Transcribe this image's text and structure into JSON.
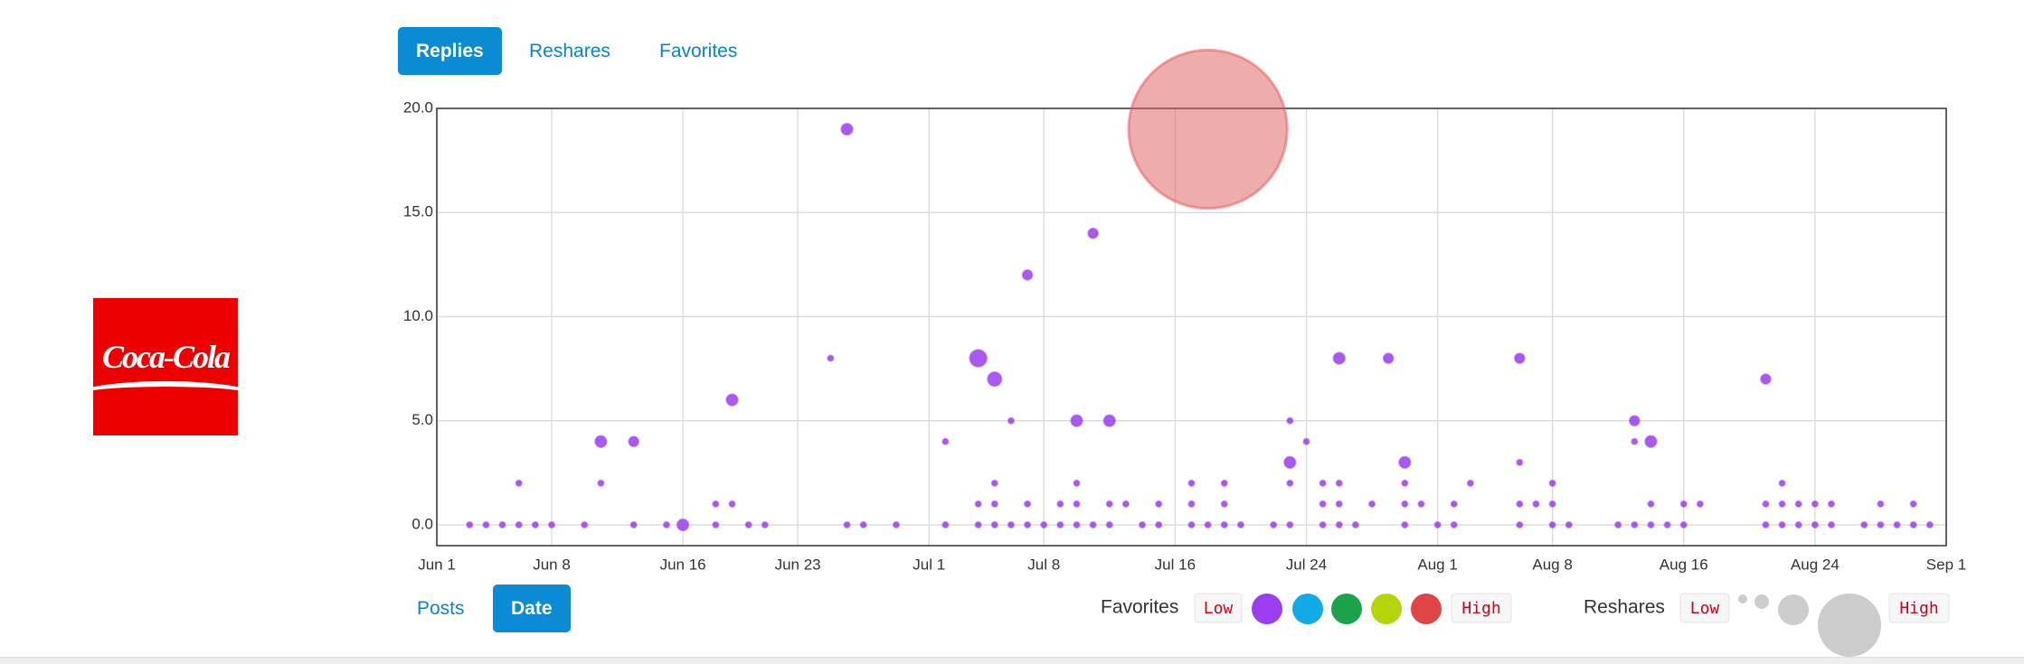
{
  "logo": {
    "text": "Coca-Cola"
  },
  "metric_tabs": [
    "Replies",
    "Reshares",
    "Favorites"
  ],
  "sort_tabs": [
    "Posts",
    "Date"
  ],
  "legend": {
    "favorites": {
      "title": "Favorites",
      "low": "Low",
      "high": "High"
    },
    "reshares": {
      "title": "Reshares",
      "low": "Low",
      "high": "High"
    }
  },
  "chart_data": {
    "type": "scatter",
    "xlim": [
      "Jun 1",
      "Sep 1"
    ],
    "xticks": [
      "Jun 1",
      "Jun 8",
      "Jun 16",
      "Jun 23",
      "Jul 1",
      "Jul 8",
      "Jul 16",
      "Jul 24",
      "Aug 1",
      "Aug 8",
      "Aug 16",
      "Aug 24",
      "Sep 1"
    ],
    "ylim": [
      -1,
      20
    ],
    "yticks": [
      {
        "value": 0,
        "label": "0.0"
      },
      {
        "value": 5,
        "label": "5.0"
      },
      {
        "value": 10,
        "label": "10.0"
      },
      {
        "value": 15,
        "label": "15.0"
      },
      {
        "value": 20,
        "label": "20.0"
      }
    ],
    "grid": true,
    "series": [
      {
        "color": "#9b3df0",
        "x": [
          "Jun 3",
          "Jun 4",
          "Jun 5",
          "Jun 6",
          "Jun 6",
          "Jun 7",
          "Jun 8",
          "Jun 10",
          "Jun 11",
          "Jun 11",
          "Jun 13",
          "Jun 13",
          "Jun 15",
          "Jun 16",
          "Jun 18",
          "Jun 18",
          "Jun 19",
          "Jun 19",
          "Jun 20",
          "Jun 21",
          "Jun 25",
          "Jun 26",
          "Jun 26",
          "Jun 27",
          "Jun 29",
          "Jul 2",
          "Jul 2",
          "Jul 4",
          "Jul 4",
          "Jul 4",
          "Jul 5",
          "Jul 5",
          "Jul 5",
          "Jul 5",
          "Jul 6",
          "Jul 6",
          "Jul 7",
          "Jul 7",
          "Jul 7",
          "Jul 8",
          "Jul 9",
          "Jul 9",
          "Jul 10",
          "Jul 10",
          "Jul 10",
          "Jul 10",
          "Jul 11",
          "Jul 11",
          "Jul 12",
          "Jul 12",
          "Jul 12",
          "Jul 13",
          "Jul 14",
          "Jul 15",
          "Jul 15",
          "Jul 17",
          "Jul 17",
          "Jul 17",
          "Jul 18",
          "Jul 19",
          "Jul 19",
          "Jul 19",
          "Jul 20",
          "Jul 22",
          "Jul 23",
          "Jul 23",
          "Jul 23",
          "Jul 23",
          "Jul 24",
          "Jul 25",
          "Jul 25",
          "Jul 25",
          "Jul 26",
          "Jul 26",
          "Jul 26",
          "Jul 26",
          "Jul 27",
          "Jul 28",
          "Jul 29",
          "Jul 30",
          "Jul 30",
          "Jul 30",
          "Jul 30",
          "Jul 31",
          "Aug 1",
          "Aug 2",
          "Aug 2",
          "Aug 3",
          "Aug 6",
          "Aug 6",
          "Aug 6",
          "Aug 6",
          "Aug 7",
          "Aug 8",
          "Aug 8",
          "Aug 8",
          "Aug 9",
          "Aug 12",
          "Aug 13",
          "Aug 13",
          "Aug 13",
          "Aug 14",
          "Aug 14",
          "Aug 14",
          "Aug 15",
          "Aug 16",
          "Aug 16",
          "Aug 17",
          "Aug 21",
          "Aug 21",
          "Aug 21",
          "Aug 22",
          "Aug 22",
          "Aug 22",
          "Aug 23",
          "Aug 23",
          "Aug 24",
          "Aug 24",
          "Aug 25",
          "Aug 25",
          "Aug 27",
          "Aug 28",
          "Aug 28",
          "Aug 29",
          "Aug 30",
          "Aug 30",
          "Aug 31"
        ],
        "values": [
          0,
          0,
          0,
          0,
          2,
          0,
          0,
          0,
          4,
          2,
          4,
          0,
          0,
          0,
          1,
          0,
          6,
          1,
          0,
          0,
          8,
          19,
          0,
          0,
          0,
          4,
          0,
          8,
          1,
          0,
          7,
          2,
          1,
          0,
          5,
          0,
          12,
          1,
          0,
          0,
          1,
          0,
          5,
          2,
          1,
          0,
          14,
          0,
          5,
          1,
          0,
          1,
          0,
          1,
          0,
          2,
          1,
          0,
          0,
          2,
          1,
          0,
          0,
          0,
          5,
          3,
          2,
          0,
          4,
          2,
          1,
          0,
          8,
          2,
          1,
          0,
          0,
          1,
          8,
          3,
          2,
          1,
          0,
          1,
          0,
          1,
          0,
          2,
          8,
          3,
          1,
          0,
          1,
          2,
          1,
          0,
          0,
          0,
          5,
          4,
          0,
          4,
          1,
          0,
          0,
          1,
          0,
          1,
          7,
          1,
          0,
          2,
          1,
          0,
          1,
          0,
          1,
          0,
          1,
          0,
          0,
          1,
          0,
          0,
          1,
          0,
          0
        ],
        "sizes": [
          1,
          1,
          1,
          1,
          1,
          1,
          1,
          1,
          4,
          1,
          3,
          1,
          1,
          4,
          1,
          1,
          4,
          1,
          1,
          1,
          1,
          4,
          1,
          1,
          1,
          1,
          1,
          9,
          1,
          1,
          6,
          1,
          1,
          1,
          1,
          1,
          3,
          1,
          1,
          1,
          1,
          1,
          4,
          1,
          1,
          1,
          3,
          1,
          4,
          1,
          1,
          1,
          1,
          1,
          1,
          1,
          1,
          1,
          1,
          1,
          1,
          1,
          1,
          1,
          1,
          4,
          1,
          1,
          1,
          1,
          1,
          1,
          4,
          1,
          1,
          1,
          1,
          1,
          3,
          4,
          1,
          1,
          1,
          1,
          1,
          1,
          1,
          1,
          3,
          1,
          1,
          1,
          1,
          1,
          1,
          1,
          1,
          1,
          3,
          1,
          1,
          4,
          1,
          1,
          1,
          1,
          1,
          1,
          3,
          1,
          1,
          1,
          1,
          1,
          1,
          1,
          1,
          1,
          1,
          1,
          1,
          1,
          1,
          1,
          1,
          1,
          1
        ]
      },
      {
        "color": "#e05a5a",
        "x": [
          "Jul 18"
        ],
        "values": [
          19
        ],
        "sizes": [
          800
        ]
      }
    ]
  }
}
